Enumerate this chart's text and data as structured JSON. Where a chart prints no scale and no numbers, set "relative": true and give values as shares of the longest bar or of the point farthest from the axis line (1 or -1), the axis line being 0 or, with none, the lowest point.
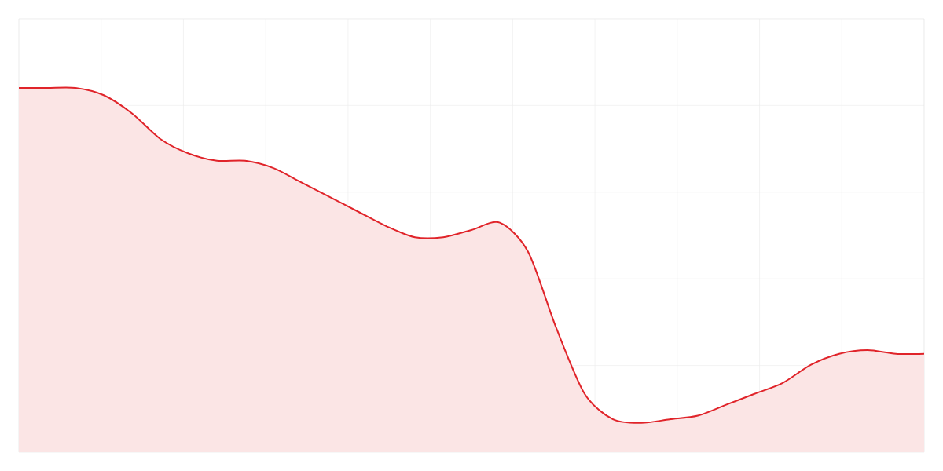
{
  "chart_data": {
    "type": "area",
    "relative": true,
    "grid": true,
    "color": "#e0242a",
    "categories": [
      null,
      null,
      null,
      null,
      null,
      null,
      null,
      null,
      null,
      null,
      null,
      null,
      null,
      null,
      null,
      null,
      null,
      null,
      null,
      null,
      null,
      null,
      null,
      null,
      null,
      null,
      null,
      null,
      null,
      null,
      null,
      null,
      null
    ],
    "values": [
      1,
      1.0,
      1.0,
      0.98,
      0.93,
      0.86,
      0.82,
      0.8,
      0.8,
      0.78,
      0.74,
      0.7,
      0.66,
      0.62,
      0.59,
      0.59,
      0.61,
      0.63,
      0.55,
      0.34,
      0.16,
      0.09,
      0.08,
      0.09,
      0.1,
      0.13,
      0.16,
      0.19,
      0.24,
      0.27,
      0.28,
      0.27,
      0.27
    ]
  }
}
